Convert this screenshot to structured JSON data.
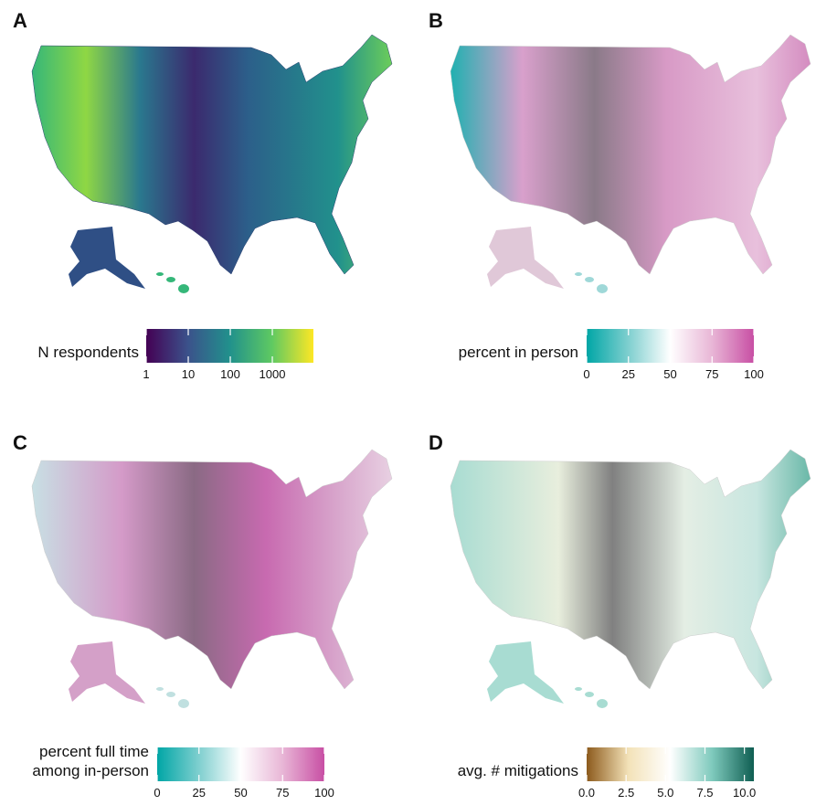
{
  "panels": [
    {
      "label": "A",
      "legend_title": [
        "N respondents"
      ],
      "colorbar": {
        "lim": [
          1,
          9500
        ],
        "log_scale": true,
        "ticks": [
          1,
          10,
          100,
          1000
        ],
        "colors": [
          "#440154",
          "#3b528b",
          "#21918c",
          "#5ec962",
          "#fde725"
        ]
      }
    },
    {
      "label": "B",
      "legend_title": [
        "percent in person"
      ],
      "colorbar": {
        "lim": [
          0,
          100
        ],
        "log_scale": false,
        "ticks": [
          0,
          25,
          50,
          75,
          100
        ],
        "colors": [
          "#00a6a6",
          "#7fcfcf",
          "#ffffff",
          "#e8b6d6",
          "#c84fa4"
        ]
      }
    },
    {
      "label": "C",
      "legend_title": [
        "percent full time",
        "among in-person"
      ],
      "colorbar": {
        "lim": [
          0,
          100
        ],
        "log_scale": false,
        "ticks": [
          0,
          25,
          50,
          75,
          100
        ],
        "colors": [
          "#00a6a6",
          "#7fcfcf",
          "#ffffff",
          "#e8b6d6",
          "#c84fa4"
        ]
      }
    },
    {
      "label": "D",
      "legend_title": [
        "avg. # mitigations"
      ],
      "colorbar": {
        "lim": [
          0,
          10.6
        ],
        "log_scale": false,
        "ticks": [
          {
            "value": 0,
            "label": "0.0"
          },
          {
            "value": 2.5,
            "label": "2.5"
          },
          {
            "value": 5,
            "label": "5.0"
          },
          {
            "value": 7.5,
            "label": "7.5"
          },
          {
            "value": 10,
            "label": "10.0"
          }
        ],
        "colors": [
          "#8c5a1c",
          "#f3e2b8",
          "#ffffff",
          "#7fcabd",
          "#0f5e52"
        ]
      }
    }
  ]
}
